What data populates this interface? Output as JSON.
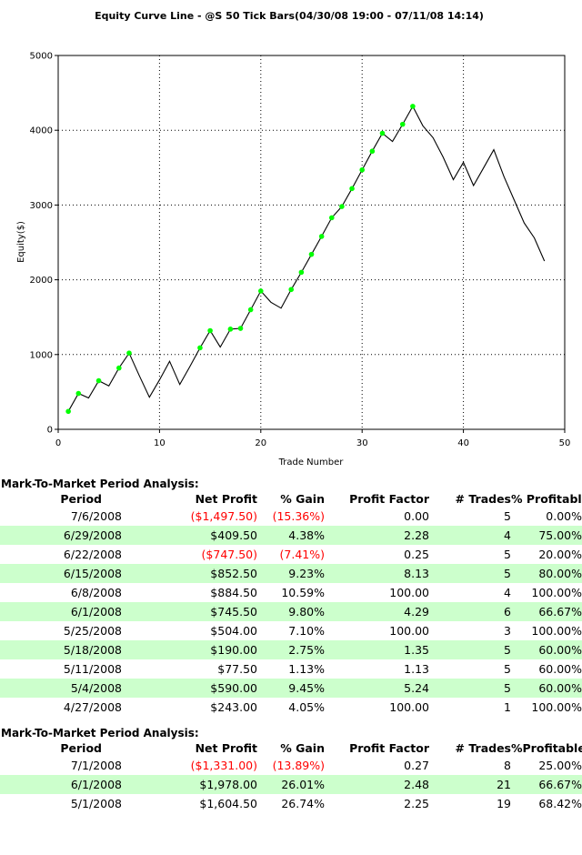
{
  "chart_data": {
    "type": "line",
    "title": "Equity Curve Line - @S 50 Tick Bars(04/30/08 19:00 - 07/11/08 14:14)",
    "xlabel": "Trade Number",
    "ylabel": "Equity($)",
    "xlim": [
      0,
      50
    ],
    "ylim": [
      0,
      5000
    ],
    "xticks": [
      "0",
      "10",
      "20",
      "30",
      "40",
      "50"
    ],
    "yticks": [
      "0",
      "1000",
      "2000",
      "3000",
      "4000",
      "5000"
    ],
    "grid": true,
    "series": [
      {
        "name": "Equity",
        "x": [
          1,
          2,
          3,
          4,
          5,
          6,
          7,
          8,
          9,
          10,
          11,
          12,
          13,
          14,
          15,
          16,
          17,
          18,
          19,
          20,
          21,
          22,
          23,
          24,
          25,
          26,
          27,
          28,
          29,
          30,
          31,
          32,
          33,
          34,
          35,
          36,
          37,
          38,
          39,
          40,
          41,
          42,
          43,
          44,
          45,
          46,
          47,
          48
        ],
        "values": [
          240,
          480,
          420,
          650,
          580,
          820,
          1020,
          720,
          430,
          660,
          910,
          600,
          840,
          1090,
          1320,
          1100,
          1340,
          1350,
          1600,
          1850,
          1700,
          1620,
          1870,
          2100,
          2340,
          2580,
          2830,
          2980,
          3220,
          3470,
          3720,
          3960,
          3850,
          4080,
          4320,
          4060,
          3900,
          3640,
          3340,
          3570,
          3260,
          3500,
          3740,
          3380,
          3070,
          2760,
          2560,
          2250
        ],
        "new_high_trades": [
          1,
          2,
          4,
          6,
          7,
          14,
          15,
          17,
          18,
          19,
          20,
          23,
          24,
          25,
          26,
          27,
          28,
          29,
          30,
          31,
          32,
          34,
          35
        ]
      }
    ]
  },
  "colors": {
    "line": "#000000",
    "new_high_marker": "#00ff00",
    "row_highlight": "#ccffcc",
    "negative": "#ff0000"
  },
  "weekly_analysis": {
    "heading": "Mark-To-Market Period Analysis:",
    "columns": [
      "Period",
      "Net Profit",
      "% Gain",
      "Profit Factor",
      "# Trades",
      "% Profitable"
    ],
    "rows": [
      {
        "period": "7/6/2008",
        "net_profit": "($1,497.50)",
        "gain": "(15.36%)",
        "profit_factor": "0.00",
        "trades": "5",
        "profitable": "0.00%",
        "negative": true
      },
      {
        "period": "6/29/2008",
        "net_profit": "$409.50",
        "gain": "4.38%",
        "profit_factor": "2.28",
        "trades": "4",
        "profitable": "75.00%",
        "negative": false
      },
      {
        "period": "6/22/2008",
        "net_profit": "($747.50)",
        "gain": "(7.41%)",
        "profit_factor": "0.25",
        "trades": "5",
        "profitable": "20.00%",
        "negative": true
      },
      {
        "period": "6/15/2008",
        "net_profit": "$852.50",
        "gain": "9.23%",
        "profit_factor": "8.13",
        "trades": "5",
        "profitable": "80.00%",
        "negative": false
      },
      {
        "period": "6/8/2008",
        "net_profit": "$884.50",
        "gain": "10.59%",
        "profit_factor": "100.00",
        "trades": "4",
        "profitable": "100.00%",
        "negative": false
      },
      {
        "period": "6/1/2008",
        "net_profit": "$745.50",
        "gain": "9.80%",
        "profit_factor": "4.29",
        "trades": "6",
        "profitable": "66.67%",
        "negative": false
      },
      {
        "period": "5/25/2008",
        "net_profit": "$504.00",
        "gain": "7.10%",
        "profit_factor": "100.00",
        "trades": "3",
        "profitable": "100.00%",
        "negative": false
      },
      {
        "period": "5/18/2008",
        "net_profit": "$190.00",
        "gain": "2.75%",
        "profit_factor": "1.35",
        "trades": "5",
        "profitable": "60.00%",
        "negative": false
      },
      {
        "period": "5/11/2008",
        "net_profit": "$77.50",
        "gain": "1.13%",
        "profit_factor": "1.13",
        "trades": "5",
        "profitable": "60.00%",
        "negative": false
      },
      {
        "period": "5/4/2008",
        "net_profit": "$590.00",
        "gain": "9.45%",
        "profit_factor": "5.24",
        "trades": "5",
        "profitable": "60.00%",
        "negative": false
      },
      {
        "period": "4/27/2008",
        "net_profit": "$243.00",
        "gain": "4.05%",
        "profit_factor": "100.00",
        "trades": "1",
        "profitable": "100.00%",
        "negative": false
      }
    ]
  },
  "monthly_analysis": {
    "heading": "Mark-To-Market Period Analysis:",
    "columns": [
      "Period",
      "Net Profit",
      "% Gain",
      "Profit Factor",
      "# Trades",
      "%Profitable"
    ],
    "rows": [
      {
        "period": "7/1/2008",
        "net_profit": "($1,331.00)",
        "gain": "(13.89%)",
        "profit_factor": "0.27",
        "trades": "8",
        "profitable": "25.00%",
        "negative": true
      },
      {
        "period": "6/1/2008",
        "net_profit": "$1,978.00",
        "gain": "26.01%",
        "profit_factor": "2.48",
        "trades": "21",
        "profitable": "66.67%",
        "negative": false
      },
      {
        "period": "5/1/2008",
        "net_profit": "$1,604.50",
        "gain": "26.74%",
        "profit_factor": "2.25",
        "trades": "19",
        "profitable": "68.42%",
        "negative": false
      }
    ]
  }
}
